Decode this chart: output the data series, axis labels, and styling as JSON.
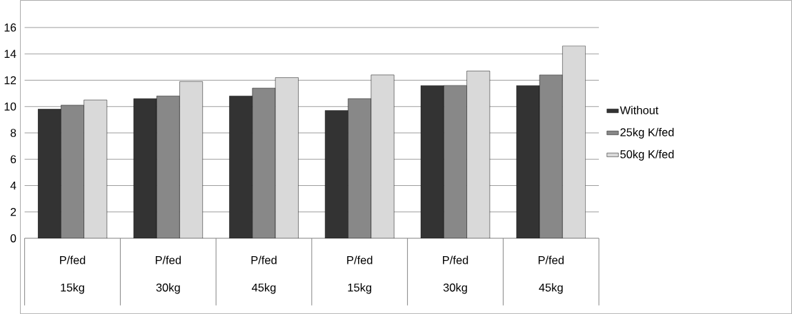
{
  "chart_data": {
    "type": "bar",
    "categories": [
      "P/fed 15kg",
      "P/fed 30kg",
      "P/fed 45kg",
      "P/fed 15kg",
      "P/fed 30kg",
      "P/fed 45kg"
    ],
    "series": [
      {
        "name": "Without",
        "color": "#333333",
        "values": [
          9.8,
          10.6,
          10.8,
          9.7,
          11.6,
          11.6
        ]
      },
      {
        "name": "25kg K/fed",
        "color": "#888888",
        "values": [
          10.1,
          10.8,
          11.4,
          10.6,
          11.6,
          12.4
        ]
      },
      {
        "name": "50kg K/fed",
        "color": "#d9d9d9",
        "values": [
          10.5,
          11.9,
          12.2,
          12.4,
          12.7,
          14.6
        ]
      }
    ],
    "ylim": [
      0,
      16
    ],
    "yticks": [
      0,
      2,
      4,
      6,
      8,
      10,
      12,
      14,
      16
    ],
    "grid": "y",
    "legend": "right"
  }
}
